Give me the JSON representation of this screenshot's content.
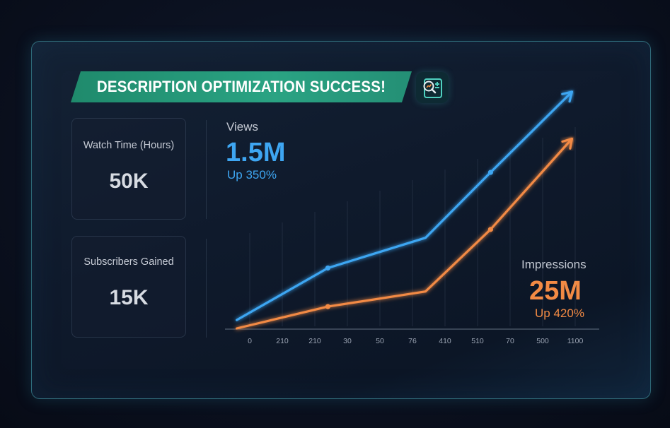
{
  "banner": {
    "title": "DESCRIPTION OPTIMIZATION SUCCESS!"
  },
  "icons": {
    "analytics": "analytics-search-icon"
  },
  "cards": {
    "watch_time": {
      "label": "Watch Time (Hours)",
      "value": "50K"
    },
    "subscribers": {
      "label": "Subscribers Gained",
      "value": "15K"
    }
  },
  "views": {
    "label": "Views",
    "value": "1.5M",
    "change": "Up 350%"
  },
  "impressions": {
    "label": "Impressions",
    "value": "25M",
    "change": "Up 420%"
  },
  "colors": {
    "views": "#3ea6f2",
    "impressions": "#f28a44",
    "accent": "#2aa383"
  },
  "chart_data": {
    "type": "line",
    "categories": [
      "0",
      "210",
      "210",
      "30",
      "50",
      "76",
      "410",
      "510",
      "70",
      "500",
      "1100"
    ],
    "x": [
      0,
      1,
      2,
      3,
      4,
      5,
      6,
      7,
      8,
      9,
      10
    ],
    "series": [
      {
        "name": "Views",
        "x": [
          -0.4,
          2.4,
          5.4,
          7.4,
          9.9
        ],
        "y": [
          0.05,
          0.36,
          0.54,
          0.93,
          1.41
        ],
        "markers": [
          1,
          3
        ]
      },
      {
        "name": "Impressions",
        "x": [
          -0.4,
          2.4,
          5.4,
          7.4,
          9.9
        ],
        "y": [
          0.0,
          0.13,
          0.22,
          0.59,
          1.13
        ],
        "markers": [
          1,
          3
        ]
      }
    ],
    "arrows": true,
    "grid": true
  }
}
